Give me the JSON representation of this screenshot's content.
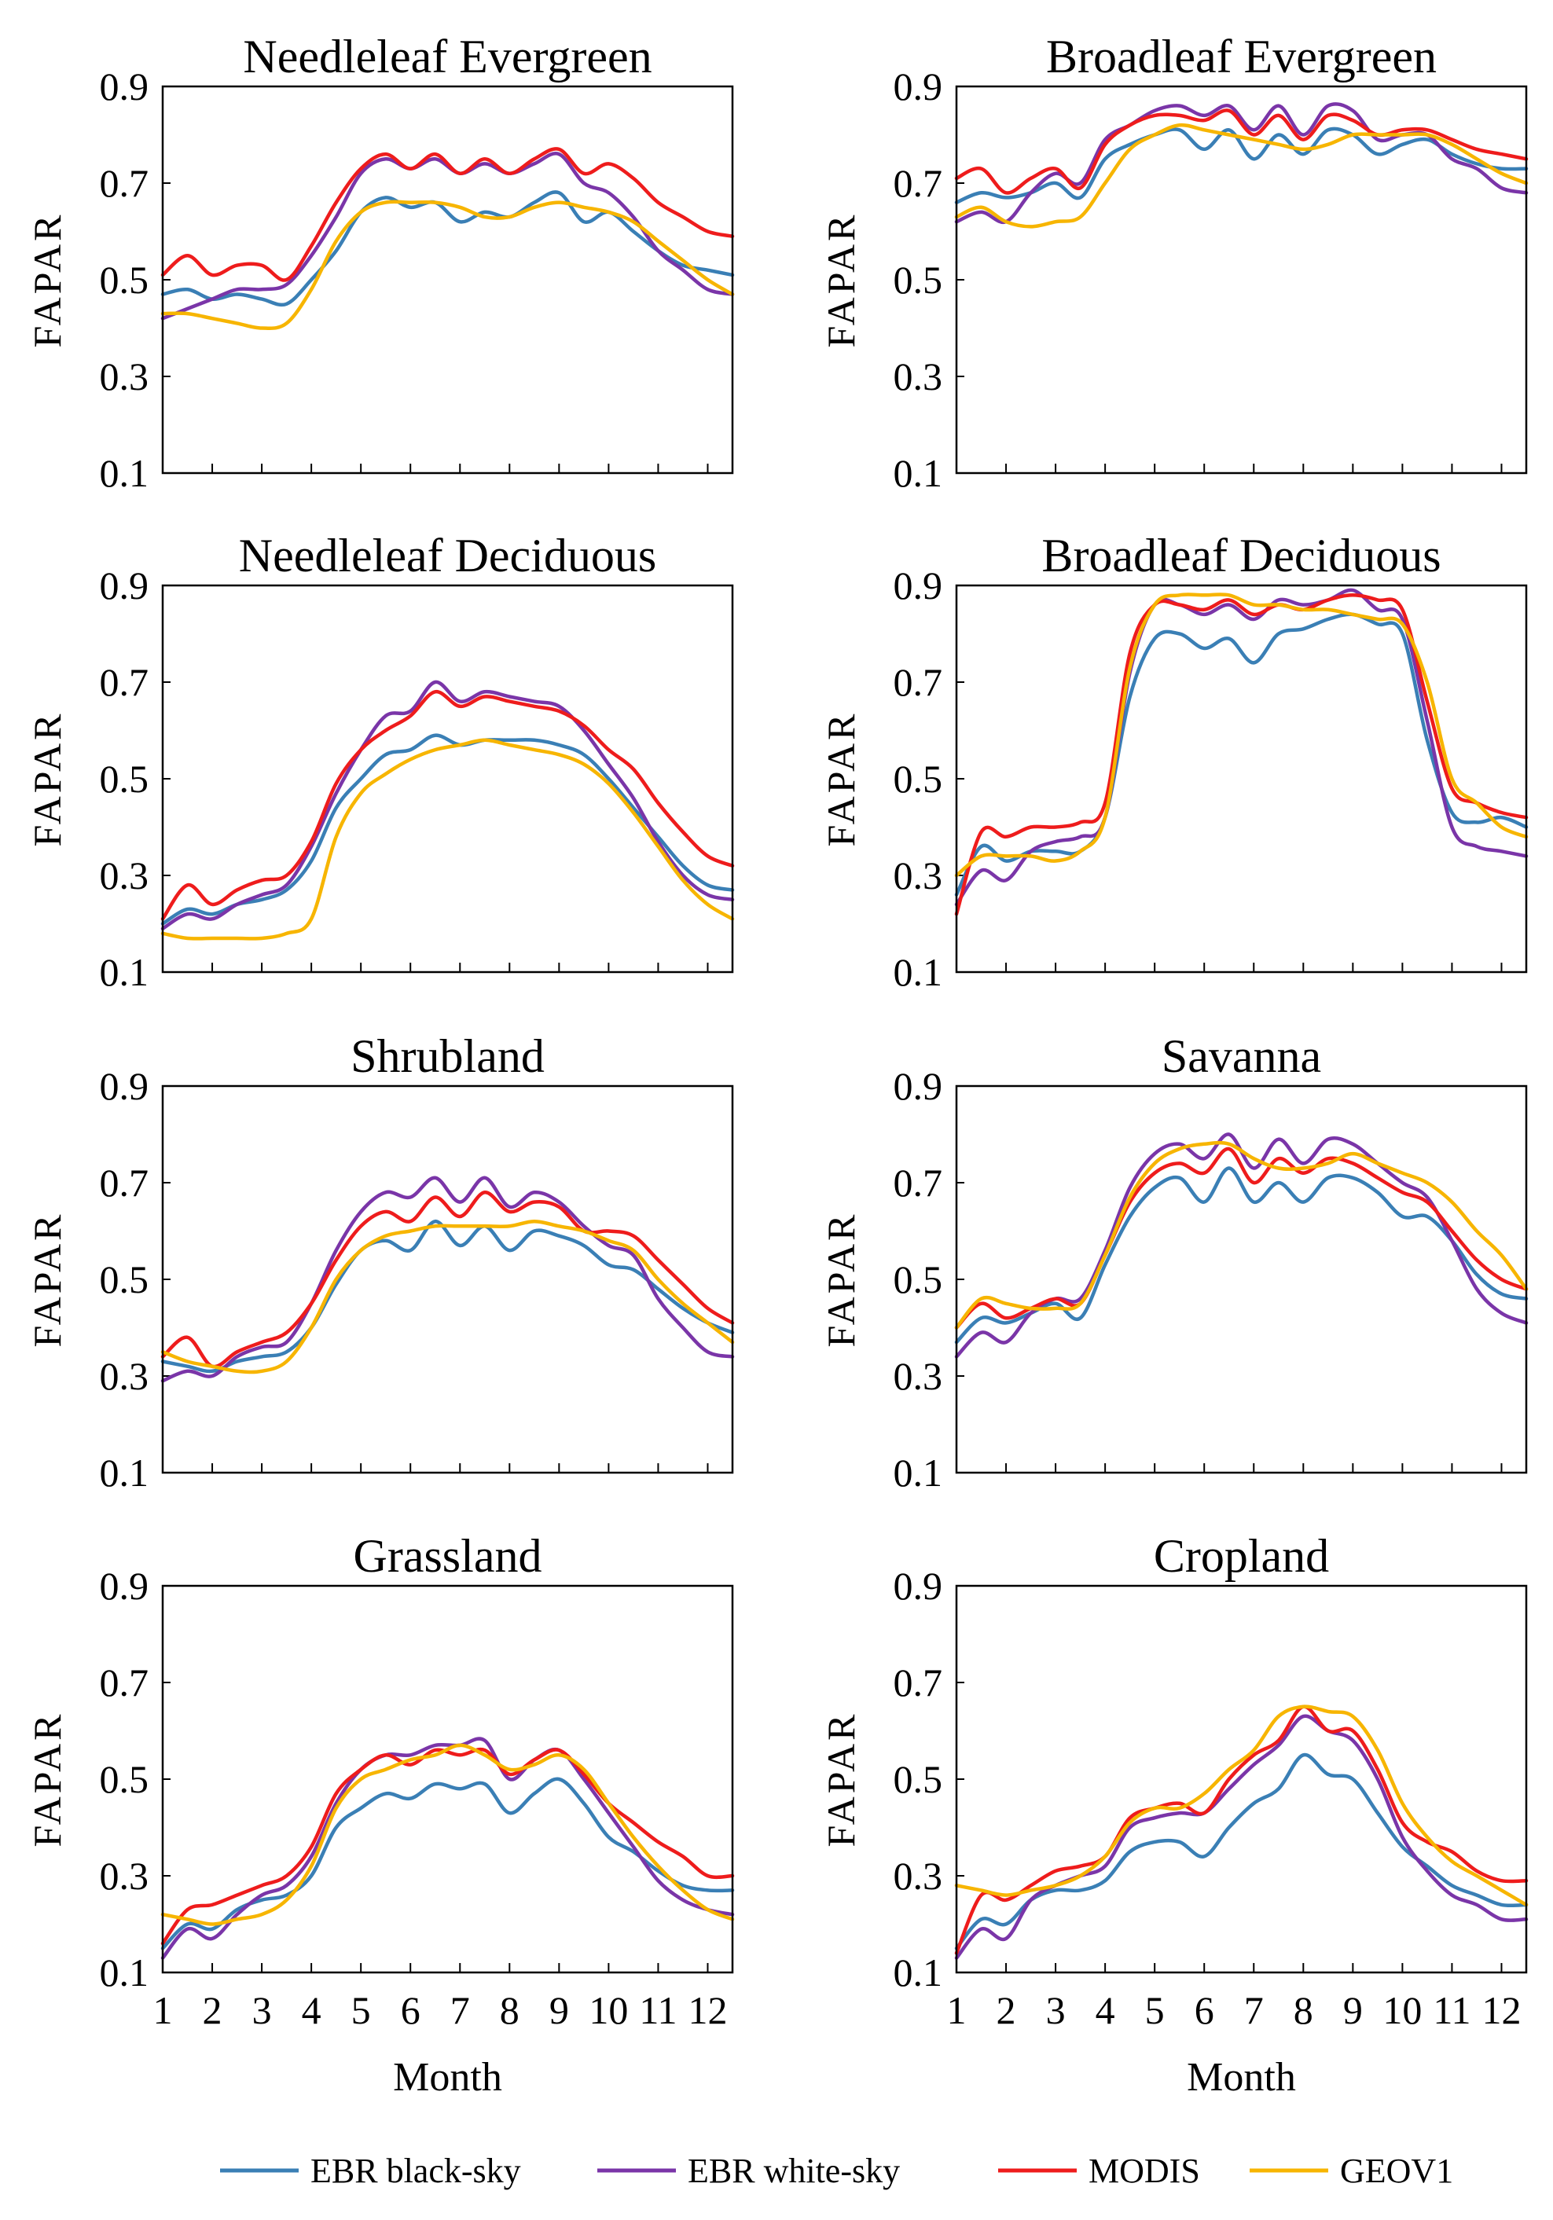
{
  "chart_data": {
    "type": "line",
    "ylabel": "FAPAR",
    "xlabel": "Month",
    "xlim": [
      1,
      12.5
    ],
    "ylim": [
      0.1,
      0.9
    ],
    "yticks": [
      "0.1",
      "0.3",
      "0.5",
      "0.7",
      "0.9"
    ],
    "xticks": [
      "1",
      "2",
      "3",
      "4",
      "5",
      "6",
      "7",
      "8",
      "9",
      "10",
      "11",
      "12"
    ],
    "x": [
      1.0,
      1.5,
      2.0,
      2.5,
      3.0,
      3.5,
      4.0,
      4.5,
      5.0,
      5.5,
      6.0,
      6.5,
      7.0,
      7.5,
      8.0,
      8.5,
      9.0,
      9.5,
      10.0,
      10.5,
      11.0,
      11.5,
      12.0,
      12.5
    ],
    "legend": [
      {
        "name": "EBR black-sky",
        "color": "#3a7fb5"
      },
      {
        "name": "EBR white-sky",
        "color": "#7a35a8"
      },
      {
        "name": "MODIS",
        "color": "#ee1c1c"
      },
      {
        "name": "GEOV1",
        "color": "#f7b500"
      }
    ],
    "panels": [
      {
        "title": "Needleleaf Evergreen",
        "series": [
          {
            "name": "EBR black-sky",
            "values": [
              0.47,
              0.48,
              0.46,
              0.47,
              0.46,
              0.45,
              0.5,
              0.56,
              0.64,
              0.67,
              0.65,
              0.66,
              0.62,
              0.64,
              0.63,
              0.66,
              0.68,
              0.62,
              0.64,
              0.6,
              0.56,
              0.53,
              0.52,
              0.51
            ]
          },
          {
            "name": "EBR white-sky",
            "values": [
              0.42,
              0.44,
              0.46,
              0.48,
              0.48,
              0.49,
              0.55,
              0.63,
              0.72,
              0.75,
              0.73,
              0.75,
              0.72,
              0.74,
              0.72,
              0.74,
              0.76,
              0.7,
              0.68,
              0.63,
              0.56,
              0.52,
              0.48,
              0.47
            ]
          },
          {
            "name": "MODIS",
            "values": [
              0.51,
              0.55,
              0.51,
              0.53,
              0.53,
              0.5,
              0.57,
              0.66,
              0.73,
              0.76,
              0.73,
              0.76,
              0.72,
              0.75,
              0.72,
              0.75,
              0.77,
              0.72,
              0.74,
              0.71,
              0.66,
              0.63,
              0.6,
              0.59
            ]
          },
          {
            "name": "GEOV1",
            "values": [
              0.43,
              0.43,
              0.42,
              0.41,
              0.4,
              0.41,
              0.48,
              0.58,
              0.64,
              0.66,
              0.66,
              0.66,
              0.65,
              0.63,
              0.63,
              0.65,
              0.66,
              0.65,
              0.64,
              0.62,
              0.58,
              0.54,
              0.5,
              0.47
            ]
          }
        ]
      },
      {
        "title": "Broadleaf Evergreen",
        "series": [
          {
            "name": "EBR black-sky",
            "values": [
              0.66,
              0.68,
              0.67,
              0.68,
              0.7,
              0.67,
              0.75,
              0.78,
              0.8,
              0.81,
              0.77,
              0.81,
              0.75,
              0.8,
              0.76,
              0.81,
              0.8,
              0.76,
              0.78,
              0.79,
              0.76,
              0.74,
              0.73,
              0.73
            ]
          },
          {
            "name": "EBR white-sky",
            "values": [
              0.62,
              0.64,
              0.62,
              0.68,
              0.72,
              0.7,
              0.79,
              0.82,
              0.85,
              0.86,
              0.84,
              0.86,
              0.81,
              0.86,
              0.8,
              0.86,
              0.85,
              0.79,
              0.8,
              0.8,
              0.75,
              0.73,
              0.69,
              0.68
            ]
          },
          {
            "name": "MODIS",
            "values": [
              0.71,
              0.73,
              0.68,
              0.71,
              0.73,
              0.69,
              0.78,
              0.82,
              0.84,
              0.84,
              0.83,
              0.85,
              0.8,
              0.84,
              0.79,
              0.84,
              0.83,
              0.8,
              0.81,
              0.81,
              0.79,
              0.77,
              0.76,
              0.75
            ]
          },
          {
            "name": "GEOV1",
            "values": [
              0.63,
              0.65,
              0.62,
              0.61,
              0.62,
              0.63,
              0.7,
              0.77,
              0.8,
              0.82,
              0.81,
              0.8,
              0.79,
              0.78,
              0.77,
              0.78,
              0.8,
              0.8,
              0.8,
              0.8,
              0.78,
              0.75,
              0.72,
              0.7
            ]
          }
        ]
      },
      {
        "title": "Needleleaf Deciduous",
        "series": [
          {
            "name": "EBR black-sky",
            "values": [
              0.2,
              0.23,
              0.22,
              0.24,
              0.25,
              0.27,
              0.33,
              0.44,
              0.5,
              0.55,
              0.56,
              0.59,
              0.57,
              0.58,
              0.58,
              0.58,
              0.57,
              0.55,
              0.5,
              0.44,
              0.38,
              0.32,
              0.28,
              0.27
            ]
          },
          {
            "name": "EBR white-sky",
            "values": [
              0.19,
              0.22,
              0.21,
              0.24,
              0.26,
              0.28,
              0.36,
              0.47,
              0.56,
              0.63,
              0.64,
              0.7,
              0.66,
              0.68,
              0.67,
              0.66,
              0.65,
              0.6,
              0.53,
              0.46,
              0.37,
              0.3,
              0.26,
              0.25
            ]
          },
          {
            "name": "MODIS",
            "values": [
              0.21,
              0.28,
              0.24,
              0.27,
              0.29,
              0.3,
              0.37,
              0.49,
              0.56,
              0.6,
              0.63,
              0.68,
              0.65,
              0.67,
              0.66,
              0.65,
              0.64,
              0.61,
              0.56,
              0.52,
              0.45,
              0.39,
              0.34,
              0.32
            ]
          },
          {
            "name": "GEOV1",
            "values": [
              0.18,
              0.17,
              0.17,
              0.17,
              0.17,
              0.18,
              0.21,
              0.38,
              0.47,
              0.51,
              0.54,
              0.56,
              0.57,
              0.58,
              0.57,
              0.56,
              0.55,
              0.53,
              0.49,
              0.43,
              0.36,
              0.29,
              0.24,
              0.21
            ]
          }
        ]
      },
      {
        "title": "Broadleaf Deciduous",
        "series": [
          {
            "name": "EBR black-sky",
            "values": [
              0.26,
              0.36,
              0.33,
              0.35,
              0.35,
              0.35,
              0.42,
              0.67,
              0.79,
              0.8,
              0.77,
              0.79,
              0.74,
              0.8,
              0.81,
              0.83,
              0.84,
              0.82,
              0.8,
              0.58,
              0.43,
              0.41,
              0.42,
              0.4
            ]
          },
          {
            "name": "EBR white-sky",
            "values": [
              0.24,
              0.31,
              0.29,
              0.35,
              0.37,
              0.38,
              0.42,
              0.72,
              0.86,
              0.86,
              0.84,
              0.86,
              0.83,
              0.87,
              0.86,
              0.87,
              0.89,
              0.85,
              0.83,
              0.62,
              0.4,
              0.36,
              0.35,
              0.34
            ]
          },
          {
            "name": "MODIS",
            "values": [
              0.22,
              0.39,
              0.38,
              0.4,
              0.4,
              0.41,
              0.45,
              0.76,
              0.86,
              0.86,
              0.85,
              0.87,
              0.84,
              0.86,
              0.85,
              0.87,
              0.88,
              0.87,
              0.85,
              0.66,
              0.48,
              0.45,
              0.43,
              0.42
            ]
          },
          {
            "name": "GEOV1",
            "values": [
              0.3,
              0.34,
              0.34,
              0.34,
              0.33,
              0.35,
              0.42,
              0.73,
              0.86,
              0.88,
              0.88,
              0.88,
              0.86,
              0.86,
              0.85,
              0.85,
              0.84,
              0.83,
              0.82,
              0.7,
              0.5,
              0.45,
              0.4,
              0.38
            ]
          }
        ]
      },
      {
        "title": "Shrubland",
        "series": [
          {
            "name": "EBR black-sky",
            "values": [
              0.33,
              0.32,
              0.31,
              0.33,
              0.34,
              0.35,
              0.4,
              0.49,
              0.56,
              0.58,
              0.56,
              0.62,
              0.57,
              0.61,
              0.56,
              0.6,
              0.59,
              0.57,
              0.53,
              0.52,
              0.48,
              0.44,
              0.41,
              0.39
            ]
          },
          {
            "name": "EBR white-sky",
            "values": [
              0.29,
              0.31,
              0.3,
              0.34,
              0.36,
              0.37,
              0.45,
              0.56,
              0.64,
              0.68,
              0.67,
              0.71,
              0.66,
              0.71,
              0.65,
              0.68,
              0.66,
              0.61,
              0.57,
              0.55,
              0.46,
              0.4,
              0.35,
              0.34
            ]
          },
          {
            "name": "MODIS",
            "values": [
              0.34,
              0.38,
              0.32,
              0.35,
              0.37,
              0.39,
              0.45,
              0.54,
              0.61,
              0.64,
              0.62,
              0.67,
              0.63,
              0.68,
              0.64,
              0.66,
              0.65,
              0.6,
              0.6,
              0.59,
              0.54,
              0.49,
              0.44,
              0.41
            ]
          },
          {
            "name": "GEOV1",
            "values": [
              0.35,
              0.33,
              0.32,
              0.31,
              0.31,
              0.33,
              0.4,
              0.5,
              0.56,
              0.59,
              0.6,
              0.61,
              0.61,
              0.61,
              0.61,
              0.62,
              0.61,
              0.6,
              0.58,
              0.56,
              0.5,
              0.45,
              0.41,
              0.37
            ]
          }
        ]
      },
      {
        "title": "Savanna",
        "series": [
          {
            "name": "EBR black-sky",
            "values": [
              0.37,
              0.42,
              0.41,
              0.43,
              0.45,
              0.42,
              0.53,
              0.63,
              0.69,
              0.71,
              0.66,
              0.73,
              0.66,
              0.7,
              0.66,
              0.71,
              0.71,
              0.68,
              0.63,
              0.63,
              0.58,
              0.51,
              0.47,
              0.46
            ]
          },
          {
            "name": "EBR white-sky",
            "values": [
              0.34,
              0.39,
              0.37,
              0.43,
              0.46,
              0.46,
              0.56,
              0.69,
              0.76,
              0.78,
              0.75,
              0.8,
              0.73,
              0.79,
              0.74,
              0.79,
              0.78,
              0.74,
              0.7,
              0.67,
              0.58,
              0.48,
              0.43,
              0.41
            ]
          },
          {
            "name": "MODIS",
            "values": [
              0.4,
              0.45,
              0.42,
              0.44,
              0.46,
              0.45,
              0.55,
              0.66,
              0.72,
              0.74,
              0.72,
              0.77,
              0.7,
              0.75,
              0.72,
              0.75,
              0.74,
              0.71,
              0.68,
              0.66,
              0.6,
              0.54,
              0.5,
              0.48
            ]
          },
          {
            "name": "GEOV1",
            "values": [
              0.4,
              0.46,
              0.45,
              0.44,
              0.44,
              0.45,
              0.55,
              0.67,
              0.74,
              0.77,
              0.78,
              0.78,
              0.75,
              0.73,
              0.73,
              0.74,
              0.76,
              0.74,
              0.72,
              0.7,
              0.66,
              0.6,
              0.55,
              0.48
            ]
          }
        ]
      },
      {
        "title": "Grassland",
        "series": [
          {
            "name": "EBR black-sky",
            "values": [
              0.15,
              0.2,
              0.19,
              0.23,
              0.25,
              0.26,
              0.3,
              0.4,
              0.44,
              0.47,
              0.46,
              0.49,
              0.48,
              0.49,
              0.43,
              0.47,
              0.5,
              0.45,
              0.38,
              0.35,
              0.31,
              0.28,
              0.27,
              0.27
            ]
          },
          {
            "name": "EBR white-sky",
            "values": [
              0.13,
              0.19,
              0.17,
              0.22,
              0.26,
              0.28,
              0.34,
              0.45,
              0.52,
              0.55,
              0.55,
              0.57,
              0.57,
              0.58,
              0.5,
              0.54,
              0.56,
              0.5,
              0.43,
              0.36,
              0.29,
              0.25,
              0.23,
              0.22
            ]
          },
          {
            "name": "MODIS",
            "values": [
              0.16,
              0.23,
              0.24,
              0.26,
              0.28,
              0.3,
              0.36,
              0.47,
              0.52,
              0.55,
              0.53,
              0.56,
              0.55,
              0.56,
              0.51,
              0.54,
              0.56,
              0.51,
              0.45,
              0.41,
              0.37,
              0.34,
              0.3,
              0.3
            ]
          },
          {
            "name": "GEOV1",
            "values": [
              0.22,
              0.21,
              0.2,
              0.21,
              0.22,
              0.25,
              0.32,
              0.44,
              0.5,
              0.52,
              0.54,
              0.55,
              0.57,
              0.55,
              0.52,
              0.53,
              0.55,
              0.52,
              0.45,
              0.38,
              0.32,
              0.27,
              0.23,
              0.21
            ]
          }
        ]
      },
      {
        "title": "Cropland",
        "series": [
          {
            "name": "EBR black-sky",
            "values": [
              0.15,
              0.21,
              0.2,
              0.25,
              0.27,
              0.27,
              0.29,
              0.35,
              0.37,
              0.37,
              0.34,
              0.4,
              0.45,
              0.48,
              0.55,
              0.51,
              0.5,
              0.43,
              0.36,
              0.32,
              0.28,
              0.26,
              0.24,
              0.24
            ]
          },
          {
            "name": "EBR white-sky",
            "values": [
              0.13,
              0.19,
              0.17,
              0.25,
              0.28,
              0.3,
              0.32,
              0.4,
              0.42,
              0.43,
              0.43,
              0.48,
              0.53,
              0.57,
              0.63,
              0.6,
              0.58,
              0.5,
              0.38,
              0.31,
              0.26,
              0.24,
              0.21,
              0.21
            ]
          },
          {
            "name": "MODIS",
            "values": [
              0.14,
              0.26,
              0.25,
              0.28,
              0.31,
              0.32,
              0.34,
              0.42,
              0.44,
              0.45,
              0.43,
              0.5,
              0.55,
              0.58,
              0.65,
              0.6,
              0.6,
              0.52,
              0.41,
              0.37,
              0.35,
              0.31,
              0.29,
              0.29
            ]
          },
          {
            "name": "GEOV1",
            "values": [
              0.28,
              0.27,
              0.26,
              0.27,
              0.28,
              0.3,
              0.34,
              0.41,
              0.44,
              0.44,
              0.47,
              0.52,
              0.56,
              0.63,
              0.65,
              0.64,
              0.63,
              0.56,
              0.45,
              0.38,
              0.33,
              0.3,
              0.27,
              0.24
            ]
          }
        ]
      }
    ]
  }
}
